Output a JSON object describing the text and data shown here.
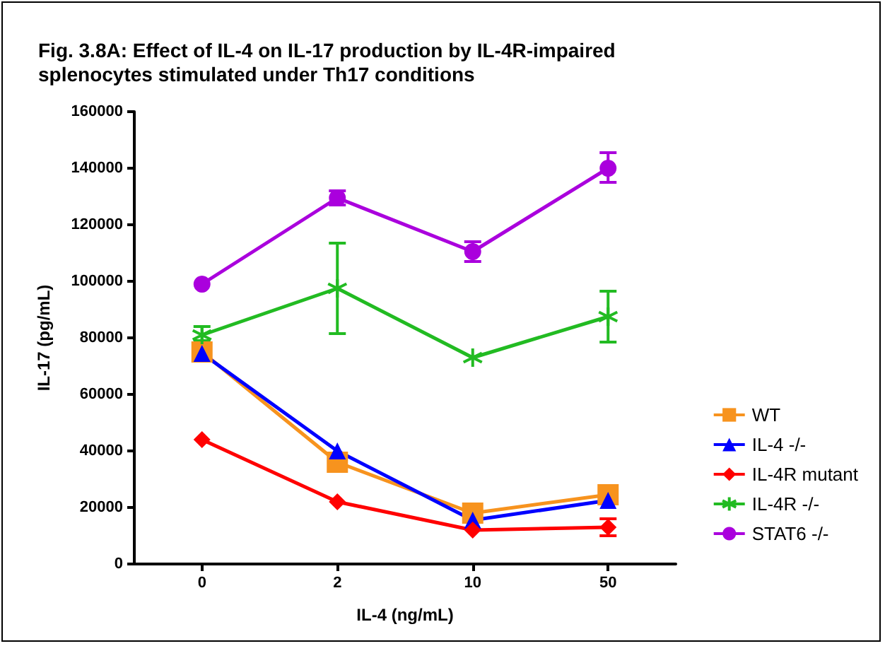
{
  "chart_data": {
    "type": "line",
    "title": "Fig. 3.8A: Effect of IL-4 on IL-17 production by IL-4R-impaired\nsplenocytes stimulated under Th17 conditions",
    "xlabel": "IL-4 (ng/mL)",
    "ylabel": "IL-17 (pg/mL)",
    "categories": [
      "0",
      "2",
      "10",
      "50"
    ],
    "ylim": [
      0,
      160000
    ],
    "yticks": [
      0,
      20000,
      40000,
      60000,
      80000,
      100000,
      120000,
      140000,
      160000
    ],
    "grid": false,
    "legend": "right",
    "series": [
      {
        "name": "WT",
        "color": "#f7931e",
        "marker": "square",
        "values": [
          75000,
          36000,
          18000,
          24500
        ]
      },
      {
        "name": "IL-4 -/-",
        "color": "#0000ff",
        "marker": "triangle",
        "values": [
          74500,
          40000,
          15500,
          22500
        ],
        "errors": [
          [
            72000,
            77000
          ],
          null,
          null,
          null
        ]
      },
      {
        "name": "IL-4R mutant",
        "color": "#ff0000",
        "marker": "diamond",
        "values": [
          44000,
          22000,
          12000,
          13000
        ],
        "errors": [
          null,
          null,
          null,
          [
            10000,
            16000
          ]
        ]
      },
      {
        "name": "IL-4R -/-",
        "color": "#22bb22",
        "marker": "cross",
        "values": [
          81000,
          97500,
          73000,
          87500
        ],
        "errors": [
          [
            79000,
            84000
          ],
          [
            81500,
            113500
          ],
          null,
          [
            78500,
            96500
          ]
        ]
      },
      {
        "name": "STAT6 -/-",
        "color": "#aa00dd",
        "marker": "circle",
        "values": [
          99000,
          129500,
          110500,
          140000
        ],
        "errors": [
          null,
          [
            127000,
            132000
          ],
          [
            107000,
            114000
          ],
          [
            135000,
            145500
          ]
        ]
      }
    ]
  }
}
